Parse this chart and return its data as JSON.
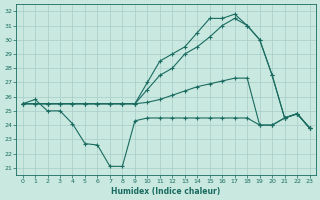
{
  "xlabel": "Humidex (Indice chaleur)",
  "bg_color": "#c8e8e0",
  "grid_color": "#a8ccc8",
  "line_color": "#1a6b60",
  "xlim": [
    -0.5,
    23.5
  ],
  "ylim": [
    20.5,
    32.5
  ],
  "xticks": [
    0,
    1,
    2,
    3,
    4,
    5,
    6,
    7,
    8,
    9,
    10,
    11,
    12,
    13,
    14,
    15,
    16,
    17,
    18,
    19,
    20,
    21,
    22,
    23
  ],
  "yticks": [
    21,
    22,
    23,
    24,
    25,
    26,
    27,
    28,
    29,
    30,
    31,
    32
  ],
  "line1_x": [
    0,
    1,
    2,
    3,
    4,
    5,
    6,
    7,
    8,
    9,
    10,
    11,
    12,
    13,
    14,
    15,
    16,
    17,
    18,
    19,
    20,
    21,
    22,
    23
  ],
  "line1_y": [
    25.5,
    25.8,
    25.0,
    25.0,
    24.1,
    22.7,
    22.6,
    21.1,
    21.1,
    24.3,
    24.5,
    24.5,
    24.5,
    24.5,
    24.5,
    24.5,
    24.5,
    24.5,
    24.5,
    24.0,
    24.0,
    24.5,
    24.8,
    23.8
  ],
  "line2_x": [
    0,
    1,
    2,
    3,
    4,
    5,
    6,
    7,
    8,
    9,
    10,
    11,
    12,
    13,
    14,
    15,
    16,
    17,
    18,
    19,
    20,
    21,
    22,
    23
  ],
  "line2_y": [
    25.5,
    25.5,
    25.5,
    25.5,
    25.5,
    25.5,
    25.5,
    25.5,
    25.5,
    25.5,
    25.6,
    25.8,
    26.1,
    26.4,
    26.7,
    26.9,
    27.1,
    27.3,
    27.3,
    24.0,
    24.0,
    24.5,
    24.8,
    23.8
  ],
  "line3_x": [
    0,
    1,
    2,
    3,
    4,
    5,
    6,
    7,
    8,
    9,
    10,
    11,
    12,
    13,
    14,
    15,
    16,
    17,
    18,
    19,
    20,
    21,
    22,
    23
  ],
  "line3_y": [
    25.5,
    25.5,
    25.5,
    25.5,
    25.5,
    25.5,
    25.5,
    25.5,
    25.5,
    25.5,
    26.5,
    27.5,
    28.0,
    29.0,
    29.5,
    30.2,
    31.0,
    31.5,
    31.0,
    30.0,
    27.5,
    24.5,
    24.8,
    23.8
  ],
  "line4_x": [
    0,
    1,
    2,
    3,
    4,
    5,
    6,
    7,
    8,
    9,
    10,
    11,
    12,
    13,
    14,
    15,
    16,
    17,
    18,
    19,
    20,
    21,
    22,
    23
  ],
  "line4_y": [
    25.5,
    25.5,
    25.5,
    25.5,
    25.5,
    25.5,
    25.5,
    25.5,
    25.5,
    25.5,
    27.0,
    28.5,
    29.0,
    29.5,
    30.5,
    31.5,
    31.5,
    31.8,
    31.0,
    30.0,
    27.5,
    24.5,
    24.8,
    23.8
  ]
}
